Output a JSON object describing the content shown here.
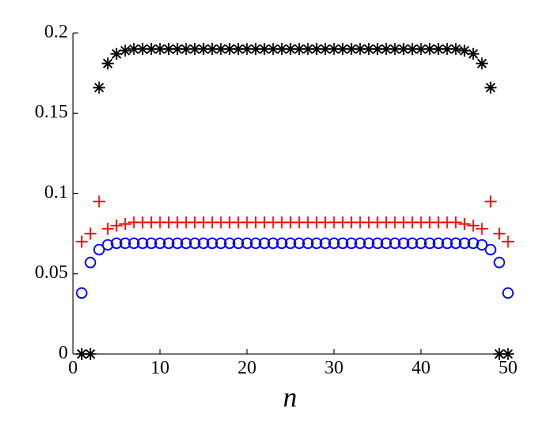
{
  "chart_data": {
    "type": "scatter",
    "x_label": "n",
    "x": [
      1,
      2,
      3,
      4,
      5,
      6,
      7,
      8,
      9,
      10,
      11,
      12,
      13,
      14,
      15,
      16,
      17,
      18,
      19,
      20,
      21,
      22,
      23,
      24,
      25,
      26,
      27,
      28,
      29,
      30,
      31,
      32,
      33,
      34,
      35,
      36,
      37,
      38,
      39,
      40,
      41,
      42,
      43,
      44,
      45,
      46,
      47,
      48,
      49,
      50
    ],
    "series": [
      {
        "color": "#000000",
        "marker": "asterisk",
        "values": [
          0,
          0,
          0.166,
          0.181,
          0.187,
          0.189,
          0.19,
          0.19,
          0.19,
          0.19,
          0.19,
          0.19,
          0.19,
          0.19,
          0.19,
          0.19,
          0.19,
          0.19,
          0.19,
          0.19,
          0.19,
          0.19,
          0.19,
          0.19,
          0.19,
          0.19,
          0.19,
          0.19,
          0.19,
          0.19,
          0.19,
          0.19,
          0.19,
          0.19,
          0.19,
          0.19,
          0.19,
          0.19,
          0.19,
          0.19,
          0.19,
          0.19,
          0.19,
          0.19,
          0.189,
          0.187,
          0.181,
          0.166,
          0,
          0
        ]
      },
      {
        "color": "#ff0000",
        "marker": "plus",
        "values": [
          0.07,
          0.075,
          0.095,
          0.078,
          0.08,
          0.081,
          0.082,
          0.082,
          0.082,
          0.082,
          0.082,
          0.082,
          0.082,
          0.082,
          0.082,
          0.082,
          0.082,
          0.082,
          0.082,
          0.082,
          0.082,
          0.082,
          0.082,
          0.082,
          0.082,
          0.082,
          0.082,
          0.082,
          0.082,
          0.082,
          0.082,
          0.082,
          0.082,
          0.082,
          0.082,
          0.082,
          0.082,
          0.082,
          0.082,
          0.082,
          0.082,
          0.082,
          0.082,
          0.082,
          0.081,
          0.08,
          0.078,
          0.095,
          0.075,
          0.07
        ]
      },
      {
        "color": "#0000ff",
        "marker": "circle",
        "values": [
          0.038,
          0.057,
          0.065,
          0.068,
          0.069,
          0.069,
          0.069,
          0.069,
          0.069,
          0.069,
          0.069,
          0.069,
          0.069,
          0.069,
          0.069,
          0.069,
          0.069,
          0.069,
          0.069,
          0.069,
          0.069,
          0.069,
          0.069,
          0.069,
          0.069,
          0.069,
          0.069,
          0.069,
          0.069,
          0.069,
          0.069,
          0.069,
          0.069,
          0.069,
          0.069,
          0.069,
          0.069,
          0.069,
          0.069,
          0.069,
          0.069,
          0.069,
          0.069,
          0.069,
          0.069,
          0.069,
          0.068,
          0.065,
          0.057,
          0.038
        ]
      }
    ],
    "xlim": [
      0,
      50
    ],
    "xticks": [
      0,
      10,
      20,
      30,
      40,
      50
    ],
    "ylim": [
      0,
      0.2
    ],
    "yticks": [
      0,
      0.05,
      0.1,
      0.15,
      0.2
    ],
    "grid": false
  }
}
